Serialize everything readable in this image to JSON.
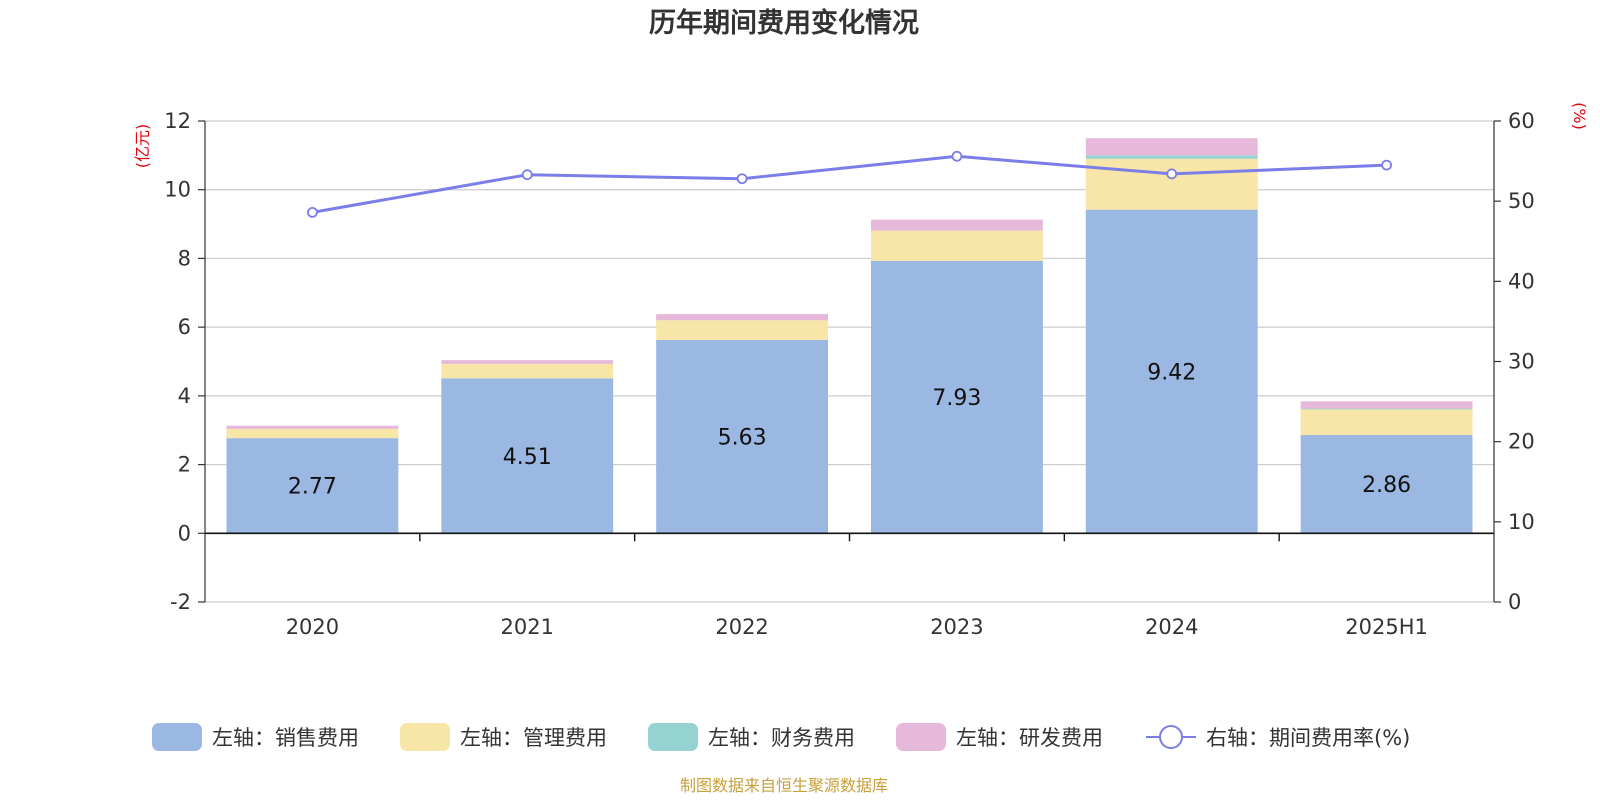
{
  "title": "历年期间费用变化情况",
  "source": "制图数据来自恒生聚源数据库",
  "colors": {
    "sales": "#9bb8e3",
    "admin": "#f8e6a8",
    "finance": "#95d3d3",
    "rd": "#e6b8da",
    "rate_line": "#7b7ee8",
    "unit_text": "#e8000b",
    "source_text": "#c8a03c"
  },
  "chart_data": {
    "type": "bar",
    "stacked": true,
    "categories": [
      "2020",
      "2021",
      "2022",
      "2023",
      "2024",
      "2025H1"
    ],
    "left_axis": {
      "unit": "(亿元)",
      "ylim": [
        -2,
        12
      ],
      "ticks": [
        "-2",
        "0",
        "2",
        "4",
        "6",
        "8",
        "10",
        "12"
      ]
    },
    "right_axis": {
      "unit": "(%)",
      "ylim": [
        0,
        60
      ],
      "ticks": [
        "0",
        "10",
        "20",
        "30",
        "40",
        "50",
        "60"
      ]
    },
    "series": [
      {
        "name": "左轴：销售费用",
        "key": "sales",
        "values": [
          2.77,
          4.51,
          5.63,
          7.93,
          9.42,
          2.86
        ],
        "labels": [
          "2.77",
          "4.51",
          "5.63",
          "7.93",
          "9.42",
          "2.86"
        ]
      },
      {
        "name": "左轴：管理费用",
        "key": "admin",
        "values": [
          0.27,
          0.42,
          0.57,
          0.88,
          1.48,
          0.76
        ]
      },
      {
        "name": "左轴：财务费用",
        "key": "finance",
        "values": [
          -0.02,
          -0.01,
          0.0,
          0.0,
          0.1,
          0.01
        ]
      },
      {
        "name": "左轴：研发费用",
        "key": "rd",
        "values": [
          0.09,
          0.11,
          0.18,
          0.32,
          0.5,
          0.21
        ]
      }
    ],
    "line_series": {
      "name": "右轴：期间费用率(%)",
      "key": "rate_line",
      "values": [
        48.6,
        53.3,
        52.8,
        55.6,
        53.4,
        54.5
      ]
    },
    "grid": true,
    "legend_position": "bottom"
  }
}
